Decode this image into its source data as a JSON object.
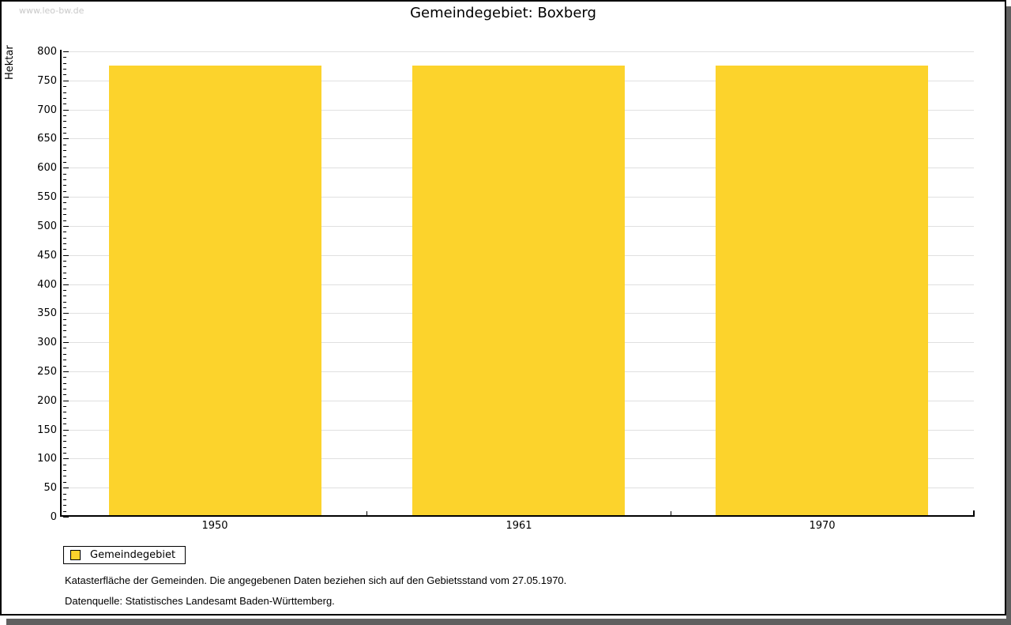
{
  "watermark": "www.leo-bw.de",
  "title": "Gemeindegebiet: Boxberg",
  "chart_data": {
    "type": "bar",
    "title": "Gemeindegebiet: Boxberg",
    "categories": [
      "1950",
      "1961",
      "1970"
    ],
    "series": [
      {
        "name": "Gemeindegebiet",
        "values": [
          775,
          775,
          775
        ]
      }
    ],
    "xlabel": "",
    "ylabel": "Hektar",
    "ylim": [
      0,
      800
    ],
    "yticks": [
      0,
      50,
      100,
      150,
      200,
      250,
      300,
      350,
      400,
      450,
      500,
      550,
      600,
      650,
      700,
      750,
      800
    ],
    "ytick_minor_step": 10,
    "grid": true,
    "legend_position": "bottom-left",
    "bar_width_fraction": 0.7
  },
  "legend": {
    "items": [
      {
        "label": "Gemeindegebiet",
        "color": "#fcd32c"
      }
    ]
  },
  "footnotes": [
    "Katasterfläche der Gemeinden. Die angegebenen Daten beziehen sich auf den Gebietsstand vom 27.05.1970.",
    "Datenquelle: Statistisches Landesamt Baden-Württemberg."
  ],
  "colors": {
    "bar": "#fcd32c",
    "grid": "#e0e0e0",
    "axis": "#000000",
    "watermark": "#c9c9c9",
    "frame_shadow": "#606060"
  }
}
